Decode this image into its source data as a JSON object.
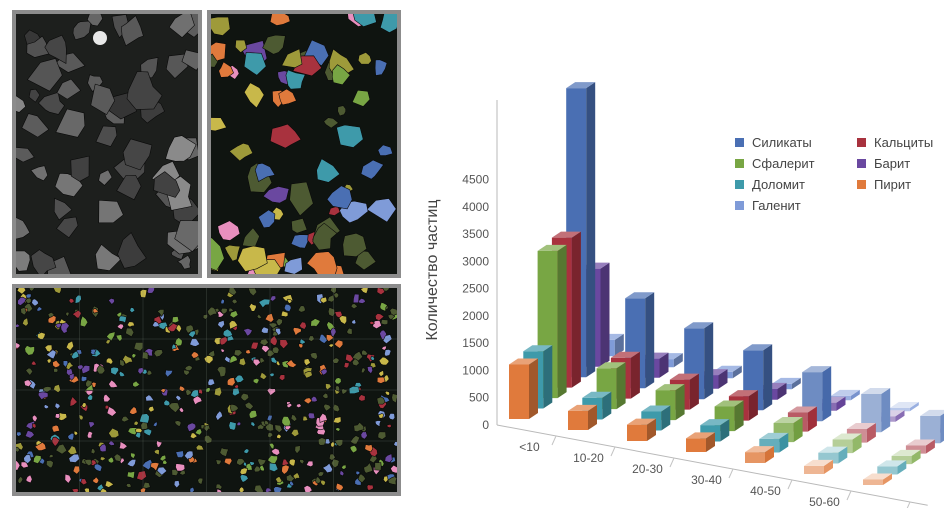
{
  "panels": [
    {
      "id": "bse",
      "caption": ""
    },
    {
      "id": "mineral-map",
      "caption": ""
    },
    {
      "id": "mosaic",
      "caption": ""
    }
  ],
  "chart_data": {
    "type": "bar",
    "title": "",
    "xlabel": "",
    "ylabel": "Количество частиц",
    "y_ticks": [
      0,
      500,
      1000,
      1500,
      2000,
      2500,
      3000,
      3500,
      4000,
      4500
    ],
    "ylim": [
      0,
      5500
    ],
    "categories": [
      "<10",
      "10-20",
      "20-30",
      "30-40",
      "40-50",
      "50-60",
      ""
    ],
    "legend_placement": "top-right",
    "series": [
      {
        "name": "Пирит",
        "color": "#E07A3C",
        "values": [
          1000,
          350,
          300,
          250,
          200,
          150,
          100
        ]
      },
      {
        "name": "Доломит",
        "color": "#3E9AAA",
        "values": [
          1050,
          400,
          350,
          300,
          250,
          200,
          150
        ]
      },
      {
        "name": "Сфалерит",
        "color": "#78A644",
        "values": [
          2700,
          750,
          550,
          450,
          350,
          250,
          150
        ]
      },
      {
        "name": "Кальциты",
        "color": "#A8323E",
        "values": [
          2750,
          750,
          550,
          450,
          350,
          250,
          150
        ]
      },
      {
        "name": "Силикаты",
        "color": "#4A6FB3",
        "values": [
          5300,
          1650,
          1300,
          1100,
          900,
          700,
          500
        ]
      },
      {
        "name": "Барит",
        "color": "#6A48A0",
        "values": [
          1800,
          350,
          250,
          200,
          150,
          100,
          80
        ]
      },
      {
        "name": "Галенит",
        "color": "#7F9BD8",
        "values": [
          300,
          150,
          120,
          100,
          80,
          60,
          40
        ]
      }
    ],
    "legend_order": [
      "Силикаты",
      "Кальциты",
      "Сфалерит",
      "Барит",
      "Доломит",
      "Пирит",
      "Галенит"
    ]
  }
}
